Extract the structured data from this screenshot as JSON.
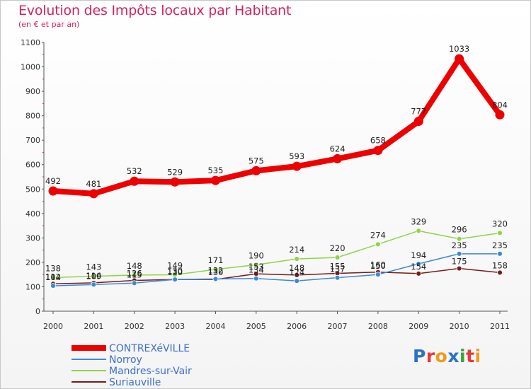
{
  "title": "Evolution des Impôts locaux par Habitant",
  "subtitle": "(en € et par an)",
  "logo": {
    "text": "Proxiti",
    "letter_colors": [
      "#2a72c6",
      "#e83838",
      "#f29a1a",
      "#2a72c6",
      "#3aa23a",
      "#e83838",
      "#f29a1a"
    ]
  },
  "chart_data": {
    "type": "line",
    "title": "Evolution des Impôts locaux par Habitant",
    "subtitle": "(en € et par an)",
    "x": [
      "2000",
      "2001",
      "2002",
      "2003",
      "2004",
      "2005",
      "2006",
      "2007",
      "2008",
      "2009",
      "2010",
      "2011"
    ],
    "ylim": [
      0,
      1100
    ],
    "yticks": [
      0,
      100,
      200,
      300,
      400,
      500,
      600,
      700,
      800,
      900,
      1000,
      1100
    ],
    "grid": false,
    "legend_position": "bottom-left",
    "series": [
      {
        "name": "CONTREXéVILLE",
        "color": "#ee0000",
        "values": [
          492,
          481,
          532,
          529,
          535,
          575,
          593,
          624,
          658,
          777,
          1033,
          804
        ]
      },
      {
        "name": "Norroy",
        "color": "#3a8ad6",
        "values": [
          104,
          109,
          115,
          130,
          132,
          134,
          124,
          137,
          150,
          194,
          235,
          235
        ]
      },
      {
        "name": "Mandres-sur-Vair",
        "color": "#8fd34a",
        "values": [
          138,
          143,
          148,
          149,
          171,
          190,
          214,
          220,
          274,
          329,
          296,
          320
        ]
      },
      {
        "name": "Suriauville",
        "color": "#7a1a1a",
        "values": [
          112,
          116,
          126,
          130,
          130,
          153,
          148,
          155,
          160,
          154,
          175,
          158
        ]
      }
    ]
  }
}
